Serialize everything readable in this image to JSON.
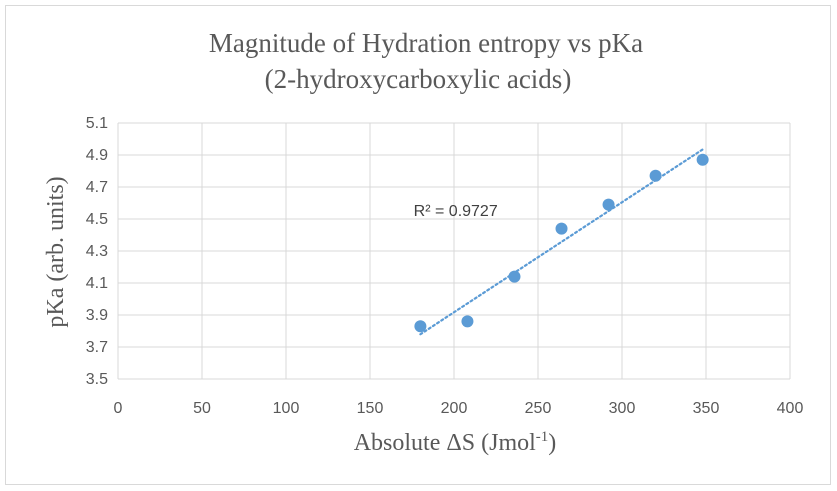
{
  "chart_data": {
    "type": "scatter",
    "title": "Magnitude of Hydration entropy vs pKa",
    "subtitle": "(2-hydroxycarboxylic acids)",
    "xlabel": "Absolute ΔS (Jmol",
    "xlabel_superscript": "-1",
    "xlabel_suffix": ")",
    "ylabel": "pKa (arb. units)",
    "xlim": [
      0,
      400
    ],
    "ylim": [
      3.5,
      5.1
    ],
    "x_ticks": [
      0,
      50,
      100,
      150,
      200,
      250,
      300,
      350,
      400
    ],
    "y_ticks": [
      3.5,
      3.7,
      3.9,
      4.1,
      4.3,
      4.5,
      4.7,
      4.9,
      5.1
    ],
    "x_tick_labels": [
      "0",
      "50",
      "100",
      "150",
      "200",
      "250",
      "300",
      "350",
      "400"
    ],
    "y_tick_labels": [
      "3.5",
      "3.7",
      "3.9",
      "4.1",
      "4.3",
      "4.5",
      "4.7",
      "4.9",
      "5.1"
    ],
    "grid": true,
    "legend": "none",
    "series": [
      {
        "x": [
          180,
          208,
          236,
          264,
          292,
          320,
          348
        ],
        "y": [
          3.83,
          3.86,
          4.14,
          4.44,
          4.59,
          4.77,
          4.87
        ],
        "marker_color": "#5B9BD5"
      }
    ],
    "trendline": {
      "type": "linear",
      "x_range": [
        180,
        348
      ],
      "color": "#5B9BD5",
      "style": "dotted"
    },
    "annotations": [
      {
        "text": "R² = 0.9727",
        "x": 176,
        "y": 4.52
      }
    ]
  }
}
